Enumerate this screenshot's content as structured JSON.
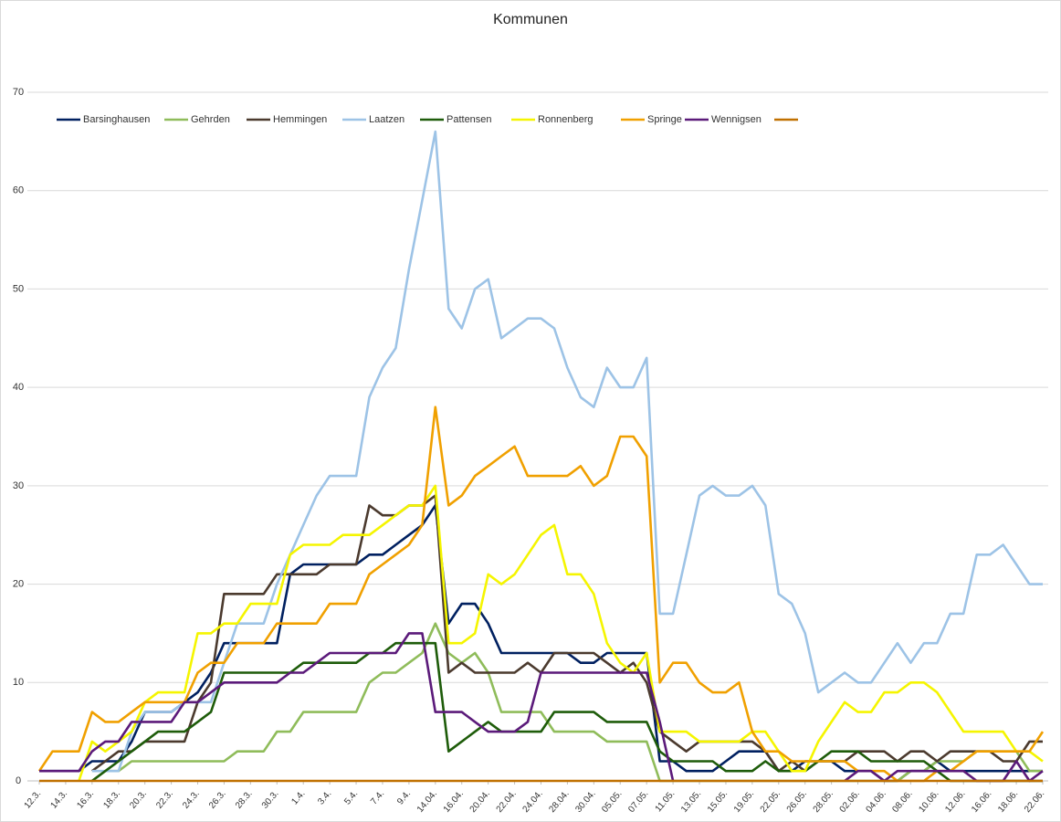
{
  "chart_data": {
    "type": "line",
    "title": "Kommunen",
    "categories": [
      "12.3.",
      null,
      "14.3.",
      null,
      "16.3.",
      null,
      "18.3.",
      null,
      "20.3.",
      null,
      "22.3.",
      null,
      "24.3.",
      null,
      "26.3.",
      null,
      "28.3.",
      null,
      "30.3.",
      null,
      "1.4.",
      null,
      "3.4.",
      null,
      "5.4.",
      null,
      "7.4.",
      null,
      "9.4.",
      null,
      "14.04.",
      null,
      "16.04.",
      null,
      "20.04.",
      null,
      "22.04.",
      null,
      "24.04.",
      null,
      "28.04.",
      null,
      "30.04.",
      null,
      "05.05.",
      null,
      "07.05.",
      null,
      "11.05.",
      null,
      "13.05.",
      null,
      "15.05.",
      null,
      "19.05.",
      null,
      "22.05.",
      null,
      "26.05.",
      null,
      "28.05.",
      null,
      "02.06.",
      null,
      "04.06.",
      null,
      "08.06.",
      null,
      "10.06.",
      null,
      "12.06.",
      null,
      "16.06.",
      null,
      "18.06.",
      null,
      "22.06."
    ],
    "ylim": [
      0,
      70
    ],
    "yticks": [
      0,
      10,
      20,
      30,
      40,
      50,
      60,
      70
    ],
    "grid": true,
    "series": [
      {
        "name": "Barsinghausen",
        "color": "#002060",
        "values": [
          1,
          1,
          1,
          1,
          2,
          2,
          2,
          4,
          7,
          7,
          7,
          8,
          9,
          11,
          14,
          14,
          14,
          14,
          14,
          21,
          22,
          22,
          22,
          22,
          22,
          23,
          23,
          24,
          25,
          26,
          28,
          16,
          18,
          18,
          16,
          13,
          13,
          13,
          13,
          13,
          13,
          12,
          12,
          13,
          13,
          13,
          13,
          2,
          2,
          1,
          1,
          1,
          2,
          3,
          3,
          3,
          1,
          1,
          2,
          2,
          2,
          1,
          1,
          1,
          0,
          0,
          1,
          1,
          2,
          1,
          1,
          1,
          1,
          1,
          1,
          1,
          1
        ]
      },
      {
        "name": "Gehrden",
        "color": "#8fbc5a",
        "values": [
          null,
          null,
          null,
          null,
          0,
          1,
          1,
          2,
          2,
          2,
          2,
          2,
          2,
          2,
          2,
          3,
          3,
          3,
          5,
          5,
          7,
          7,
          7,
          7,
          7,
          10,
          11,
          11,
          12,
          13,
          16,
          13,
          12,
          13,
          11,
          7,
          7,
          7,
          7,
          5,
          5,
          5,
          5,
          4,
          4,
          4,
          4,
          0,
          0,
          0,
          0,
          0,
          0,
          0,
          0,
          0,
          0,
          0,
          0,
          0,
          0,
          0,
          0,
          0,
          0,
          0,
          1,
          1,
          2,
          2,
          2,
          3,
          3,
          3,
          3,
          1,
          1
        ]
      },
      {
        "name": "Hemmingen",
        "color": "#4b3a2e",
        "values": [
          null,
          null,
          null,
          null,
          1,
          2,
          3,
          3,
          4,
          4,
          4,
          4,
          8,
          10,
          19,
          19,
          19,
          19,
          21,
          21,
          21,
          21,
          22,
          22,
          22,
          28,
          27,
          27,
          28,
          28,
          29,
          11,
          12,
          11,
          11,
          11,
          11,
          12,
          11,
          13,
          13,
          13,
          13,
          12,
          11,
          12,
          10,
          5,
          4,
          3,
          4,
          4,
          4,
          4,
          4,
          3,
          1,
          2,
          1,
          2,
          2,
          2,
          3,
          3,
          3,
          2,
          3,
          3,
          2,
          3,
          3,
          3,
          3,
          2,
          2,
          4,
          4
        ]
      },
      {
        "name": "Laatzen",
        "color": "#9dc3e6",
        "values": [
          null,
          null,
          null,
          null,
          1,
          1,
          1,
          5,
          7,
          7,
          7,
          8,
          8,
          8,
          12,
          16,
          16,
          16,
          20,
          23,
          26,
          29,
          31,
          31,
          31,
          39,
          42,
          44,
          52,
          59,
          66,
          48,
          46,
          50,
          51,
          45,
          46,
          47,
          47,
          46,
          42,
          39,
          38,
          42,
          40,
          40,
          43,
          17,
          17,
          23,
          29,
          30,
          29,
          29,
          30,
          28,
          19,
          18,
          15,
          9,
          10,
          11,
          10,
          10,
          12,
          14,
          12,
          14,
          14,
          17,
          17,
          23,
          23,
          24,
          22,
          20,
          20
        ]
      },
      {
        "name": "Pattensen",
        "color": "#1e5c0a",
        "values": [
          null,
          null,
          null,
          null,
          0,
          1,
          2,
          3,
          4,
          5,
          5,
          5,
          6,
          7,
          11,
          11,
          11,
          11,
          11,
          11,
          12,
          12,
          12,
          12,
          12,
          13,
          13,
          14,
          14,
          14,
          14,
          3,
          4,
          5,
          6,
          5,
          5,
          5,
          5,
          7,
          7,
          7,
          7,
          6,
          6,
          6,
          6,
          3,
          2,
          2,
          2,
          2,
          1,
          1,
          1,
          2,
          1,
          1,
          1,
          2,
          3,
          3,
          3,
          2,
          2,
          2,
          2,
          2,
          1,
          0,
          0,
          0,
          0,
          0,
          0,
          0,
          0
        ]
      },
      {
        "name": "Ronnenberg",
        "color": "#f5f500",
        "values": [
          null,
          null,
          null,
          0,
          4,
          3,
          4,
          5,
          8,
          9,
          9,
          9,
          15,
          15,
          16,
          16,
          18,
          18,
          18,
          23,
          24,
          24,
          24,
          25,
          25,
          25,
          26,
          27,
          28,
          28,
          30,
          14,
          14,
          15,
          21,
          20,
          21,
          23,
          25,
          26,
          21,
          21,
          19,
          14,
          12,
          11,
          13,
          5,
          5,
          5,
          4,
          4,
          4,
          4,
          5,
          5,
          3,
          1,
          1,
          4,
          6,
          8,
          7,
          7,
          9,
          9,
          10,
          10,
          9,
          7,
          5,
          5,
          5,
          5,
          3,
          3,
          2
        ]
      },
      {
        "name": "Springe",
        "color": "#f0a000",
        "values": [
          1,
          3,
          3,
          3,
          7,
          6,
          6,
          7,
          8,
          8,
          8,
          8,
          11,
          12,
          12,
          14,
          14,
          14,
          16,
          16,
          16,
          16,
          18,
          18,
          18,
          21,
          22,
          23,
          24,
          26,
          38,
          28,
          29,
          31,
          32,
          33,
          34,
          31,
          31,
          31,
          31,
          32,
          30,
          31,
          35,
          35,
          33,
          10,
          12,
          12,
          10,
          9,
          9,
          10,
          5,
          3,
          3,
          2,
          2,
          2,
          2,
          2,
          1,
          1,
          1,
          0,
          0,
          0,
          1,
          1,
          2,
          3,
          3,
          3,
          3,
          3,
          5
        ]
      },
      {
        "name": "Wennigsen",
        "color": "#5b1a7a",
        "values": [
          1,
          1,
          1,
          1,
          3,
          4,
          4,
          6,
          6,
          6,
          6,
          8,
          8,
          9,
          10,
          10,
          10,
          10,
          10,
          11,
          11,
          12,
          13,
          13,
          13,
          13,
          13,
          13,
          15,
          15,
          7,
          7,
          7,
          6,
          5,
          5,
          5,
          6,
          11,
          11,
          11,
          11,
          11,
          11,
          11,
          11,
          11,
          6,
          0,
          null,
          null,
          null,
          null,
          null,
          null,
          null,
          null,
          null,
          null,
          null,
          null,
          0,
          1,
          1,
          0,
          1,
          1,
          1,
          1,
          1,
          1,
          0,
          0,
          0,
          2,
          0,
          1
        ]
      },
      {
        "color": "#c07000",
        "values": [
          0,
          0,
          0,
          0,
          0,
          0,
          0,
          0,
          0,
          0,
          0,
          0,
          0,
          0,
          0,
          0,
          0,
          0,
          0,
          0,
          0,
          0,
          0,
          0,
          0,
          0,
          0,
          0,
          0,
          0,
          0,
          0,
          0,
          0,
          0,
          0,
          0,
          0,
          0,
          0,
          0,
          0,
          0,
          0,
          0,
          0,
          0,
          0,
          0,
          0,
          0,
          0,
          0,
          0,
          0,
          0,
          0,
          0,
          0,
          0,
          0,
          0,
          0,
          0,
          0,
          0,
          0,
          0,
          0,
          0,
          0,
          0,
          0,
          0,
          0,
          0,
          0
        ]
      }
    ]
  }
}
